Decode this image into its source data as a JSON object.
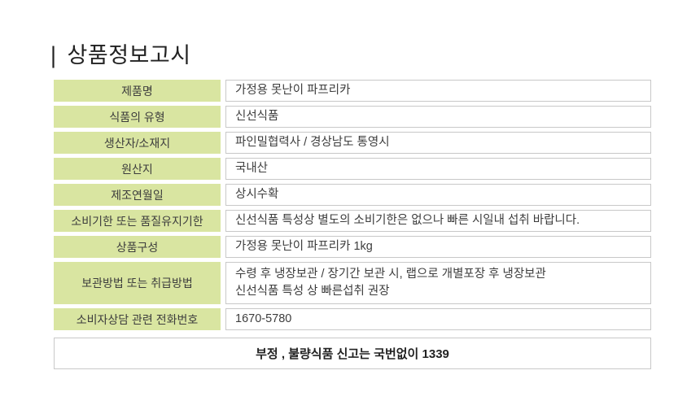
{
  "title": {
    "prefix": "|",
    "text": "상품정보고시"
  },
  "table": {
    "rows": [
      {
        "label": "제품명",
        "value": "가정용 못난이 파프리카"
      },
      {
        "label": "식품의 유형",
        "value": "신선식품"
      },
      {
        "label": "생산자/소재지",
        "value": "파인밀협력사 / 경상남도 통영시"
      },
      {
        "label": "원산지",
        "value": "국내산"
      },
      {
        "label": "제조연월일",
        "value": "상시수확"
      },
      {
        "label": "소비기한 또는 품질유지기한",
        "value": "신선식품 특성상 별도의 소비기한은 없으나 빠른 시일내 섭취 바랍니다."
      },
      {
        "label": "상품구성",
        "value": "가정용 못난이 파프리카 1kg"
      },
      {
        "label": "보관방법 또는 취급방법",
        "value": "수령 후 냉장보관 / 장기간 보관 시, 랩으로 개별포장 후 냉장보관\n신선식품 특성 상 빠른섭취 권장"
      },
      {
        "label": "소비자상담 관련 전화번호",
        "value": "1670-5780"
      }
    ]
  },
  "footer": {
    "notice": "부정 , 불량식품 신고는 국번없이 1339"
  },
  "colors": {
    "label_background": "#d9e5a1",
    "cell_border": "#c8c8c8",
    "text": "#3d3d3d",
    "title_text": "#222222"
  }
}
